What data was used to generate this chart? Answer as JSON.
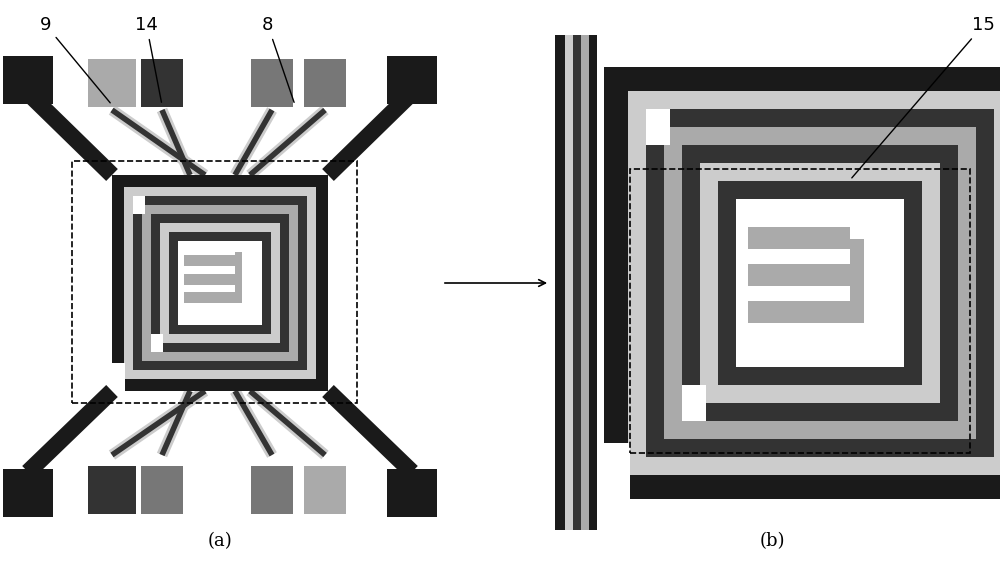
{
  "fig_width": 10.0,
  "fig_height": 5.65,
  "bg_color": "#ffffff",
  "c_black": "#1a1a1a",
  "c_dark": "#333333",
  "c_mid": "#777777",
  "c_light": "#aaaaaa",
  "c_lighter": "#cccccc",
  "c_white": "#ffffff",
  "pad_light": "#aaaaaa",
  "pad_mid": "#666666",
  "pad_dark": "#444444",
  "label_a": "(a)",
  "label_b": "(b)",
  "ann_fontsize": 13
}
